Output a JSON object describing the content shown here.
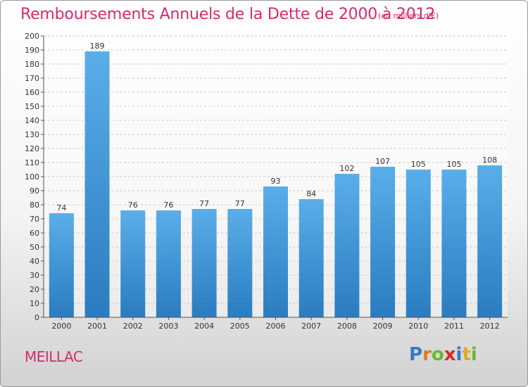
{
  "header": {
    "title": "Remboursements Annuels de la Dette de 2000 à 2012",
    "subtitle": "(en milliers d'€)"
  },
  "footer": {
    "commune": "MEILLAC",
    "logo_text": "Proxiti",
    "logo_letters": [
      {
        "ch": "P",
        "color": "#3a78c8"
      },
      {
        "ch": "r",
        "color": "#e07a1c"
      },
      {
        "ch": "o",
        "color": "#6ab82e"
      },
      {
        "ch": "x",
        "color": "#d62a2a"
      },
      {
        "ch": "i",
        "color": "#3a78c8"
      },
      {
        "ch": "t",
        "color": "#e0a81c"
      },
      {
        "ch": "i",
        "color": "#6ab82e"
      }
    ]
  },
  "colors": {
    "bar_top": "#5aaee8",
    "bar_bottom": "#2a7cc0",
    "accent": "#d62a6a"
  },
  "chart_data": {
    "type": "bar",
    "categories": [
      "2000",
      "2001",
      "2002",
      "2003",
      "2004",
      "2005",
      "2006",
      "2007",
      "2008",
      "2009",
      "2010",
      "2011",
      "2012"
    ],
    "values": [
      74,
      189,
      76,
      76,
      77,
      77,
      93,
      84,
      102,
      107,
      105,
      105,
      108
    ],
    "ylim": [
      0,
      200
    ],
    "ytick_step": 10,
    "grid": true
  }
}
